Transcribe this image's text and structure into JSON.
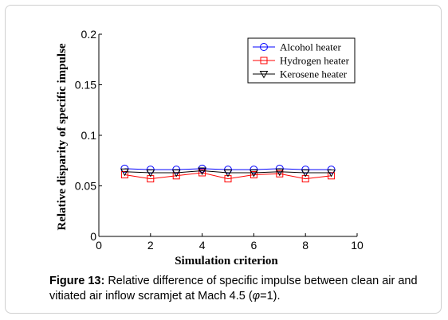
{
  "chart_data": {
    "type": "line",
    "xlabel": "Simulation criterion",
    "ylabel": "Relative disparity of specific impulse",
    "xlim": [
      0,
      10
    ],
    "ylim": [
      0,
      0.2
    ],
    "xticks": [
      "0",
      "2",
      "4",
      "6",
      "8",
      "10"
    ],
    "yticks": [
      "0",
      "0.05",
      "0.1",
      "0.15",
      "0.2"
    ],
    "x": [
      1,
      2,
      3,
      4,
      5,
      6,
      7,
      8,
      9
    ],
    "legend_position": "top-right",
    "grid": false,
    "series": [
      {
        "name": "Alcohol heater",
        "color": "#0000ff",
        "marker": "circle",
        "values": [
          0.067,
          0.066,
          0.066,
          0.067,
          0.066,
          0.066,
          0.067,
          0.066,
          0.066
        ]
      },
      {
        "name": "Hydrogen heater",
        "color": "#ff0000",
        "marker": "square",
        "values": [
          0.061,
          0.057,
          0.06,
          0.063,
          0.057,
          0.061,
          0.062,
          0.057,
          0.06
        ]
      },
      {
        "name": "Kerosene heater",
        "color": "#000000",
        "marker": "triangle-down",
        "values": [
          0.064,
          0.063,
          0.063,
          0.065,
          0.063,
          0.063,
          0.064,
          0.063,
          0.063
        ]
      }
    ]
  },
  "caption": {
    "label": "Figure 13:",
    "text": " Relative difference of specific impulse between clean air and vitiated air inflow scramjet at Mach 4.5 (",
    "phi": "φ",
    "tail": "=1)."
  }
}
